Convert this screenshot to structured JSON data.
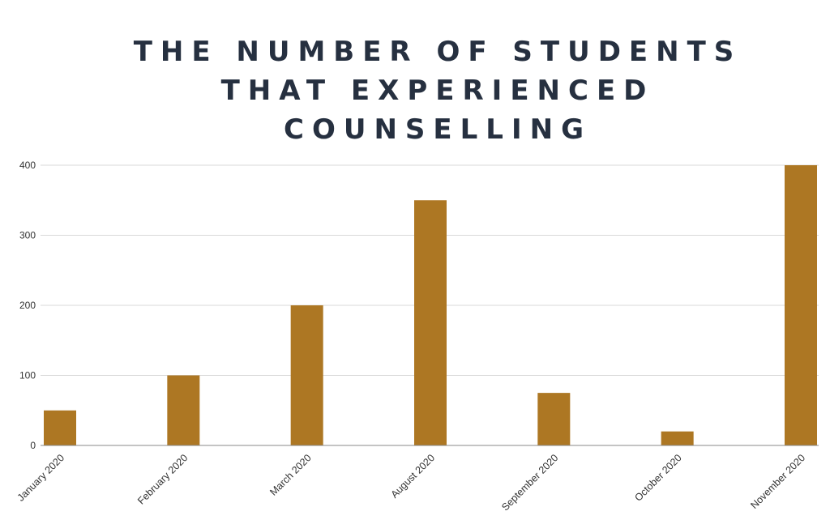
{
  "chart_data": {
    "type": "bar",
    "title_lines": [
      "THE NUMBER OF STUDENTS",
      "THAT EXPERIENCED",
      "COUNSELLING"
    ],
    "categories": [
      "January 2020",
      "February 2020",
      "March 2020",
      "August 2020",
      "September 2020",
      "October 2020",
      "November 2020"
    ],
    "values": [
      50,
      100,
      200,
      350,
      75,
      20,
      400
    ],
    "ylim": [
      0,
      400
    ],
    "yticks": [
      0,
      100,
      200,
      300,
      400
    ],
    "grid": true,
    "bar_color": "#ad7723",
    "grid_color": "#d9d9d9",
    "axis_color": "#888888",
    "title_color": "#263040"
  }
}
